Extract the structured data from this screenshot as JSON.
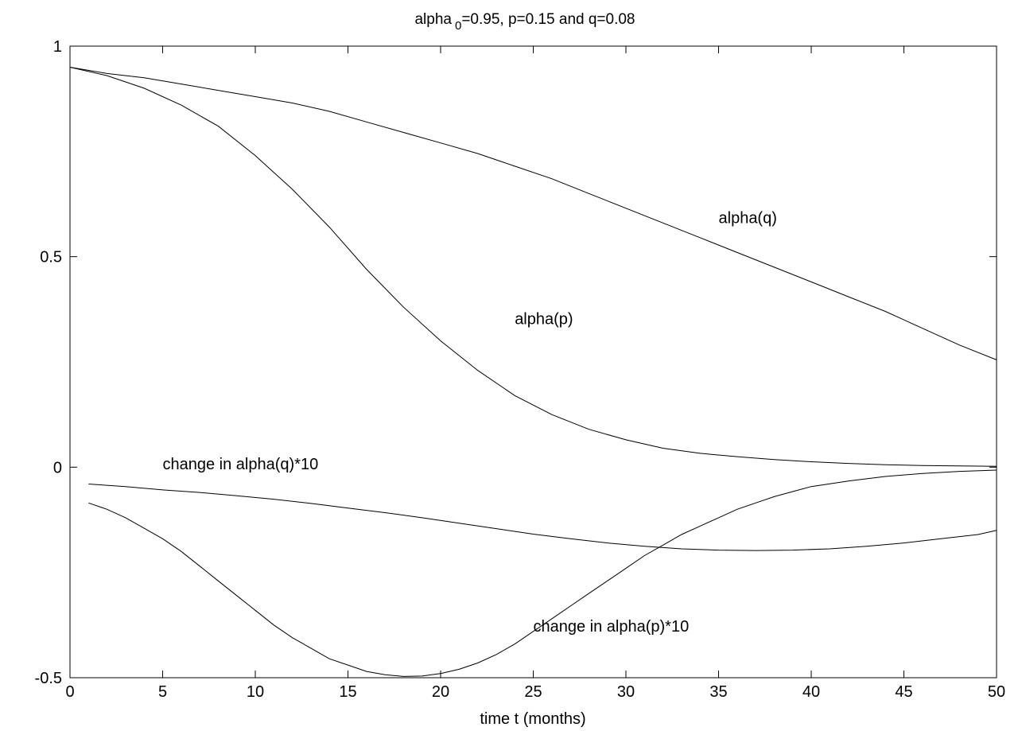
{
  "chart_data": {
    "type": "line",
    "title": "alpha",
    "title_subscript": "0",
    "title_rest": "=0.95, p=0.15 and q=0.08",
    "xlabel": "time t (months)",
    "ylabel": "",
    "xlim": [
      0,
      50
    ],
    "ylim": [
      -0.5,
      1
    ],
    "x_ticks": [
      0,
      5,
      10,
      15,
      20,
      25,
      30,
      35,
      40,
      45,
      50
    ],
    "y_ticks": [
      -0.5,
      0,
      0.5,
      1
    ],
    "y_tick_labels": [
      "-0.5",
      "0",
      "0.5",
      "1"
    ],
    "grid": false,
    "series": [
      {
        "key": "alpha_q",
        "x": [
          0,
          2,
          4,
          6,
          8,
          10,
          12,
          14,
          16,
          18,
          20,
          22,
          24,
          26,
          28,
          30,
          32,
          34,
          36,
          38,
          40,
          42,
          44,
          46,
          48,
          50
        ],
        "values": [
          0.95,
          0.935,
          0.925,
          0.91,
          0.895,
          0.88,
          0.865,
          0.845,
          0.82,
          0.795,
          0.77,
          0.745,
          0.715,
          0.685,
          0.65,
          0.615,
          0.58,
          0.545,
          0.51,
          0.475,
          0.44,
          0.405,
          0.37,
          0.33,
          0.29,
          0.255
        ]
      },
      {
        "key": "alpha_p",
        "x": [
          0,
          2,
          4,
          6,
          8,
          10,
          12,
          14,
          16,
          18,
          20,
          22,
          24,
          26,
          28,
          30,
          32,
          34,
          36,
          38,
          40,
          42,
          44,
          46,
          48,
          50
        ],
        "values": [
          0.95,
          0.93,
          0.9,
          0.86,
          0.81,
          0.74,
          0.66,
          0.57,
          0.47,
          0.38,
          0.3,
          0.23,
          0.17,
          0.125,
          0.09,
          0.065,
          0.045,
          0.033,
          0.025,
          0.018,
          0.013,
          0.009,
          0.006,
          0.004,
          0.003,
          0.002
        ]
      },
      {
        "key": "change_q",
        "x": [
          1,
          3,
          5,
          7,
          9,
          11,
          13,
          15,
          17,
          19,
          21,
          23,
          25,
          27,
          29,
          31,
          33,
          35,
          37,
          39,
          41,
          43,
          45,
          47,
          49,
          50
        ],
        "values": [
          -0.04,
          -0.046,
          -0.054,
          -0.06,
          -0.068,
          -0.076,
          -0.086,
          -0.097,
          -0.108,
          -0.12,
          -0.133,
          -0.146,
          -0.159,
          -0.17,
          -0.18,
          -0.188,
          -0.194,
          -0.197,
          -0.198,
          -0.197,
          -0.194,
          -0.188,
          -0.18,
          -0.17,
          -0.16,
          -0.15
        ]
      },
      {
        "key": "change_p",
        "x": [
          1,
          2,
          3,
          4,
          5,
          6,
          7,
          8,
          9,
          10,
          11,
          12,
          13,
          14,
          15,
          16,
          17,
          18,
          19,
          20,
          21,
          22,
          23,
          24,
          25,
          26,
          27,
          28,
          29,
          30,
          31,
          32,
          33,
          34,
          35,
          36,
          37,
          38,
          39,
          40,
          42,
          44,
          46,
          48,
          50
        ],
        "values": [
          -0.085,
          -0.1,
          -0.12,
          -0.145,
          -0.17,
          -0.2,
          -0.235,
          -0.27,
          -0.305,
          -0.34,
          -0.375,
          -0.405,
          -0.43,
          -0.455,
          -0.47,
          -0.485,
          -0.493,
          -0.497,
          -0.496,
          -0.49,
          -0.48,
          -0.465,
          -0.445,
          -0.42,
          -0.39,
          -0.36,
          -0.33,
          -0.3,
          -0.27,
          -0.24,
          -0.21,
          -0.185,
          -0.16,
          -0.14,
          -0.12,
          -0.1,
          -0.085,
          -0.07,
          -0.058,
          -0.046,
          -0.033,
          -0.022,
          -0.015,
          -0.01,
          -0.007
        ]
      }
    ],
    "annotations": [
      {
        "key": "alpha_q",
        "text": "alpha(q)",
        "x": 35,
        "y": 0.58
      },
      {
        "key": "alpha_p",
        "text": "alpha(p)",
        "x": 24,
        "y": 0.34
      },
      {
        "key": "change_q",
        "text": "change in alpha(q)*10",
        "x": 5,
        "y": -0.005
      },
      {
        "key": "change_p",
        "text": "change in alpha(p)*10",
        "x": 25,
        "y": -0.39
      }
    ]
  }
}
